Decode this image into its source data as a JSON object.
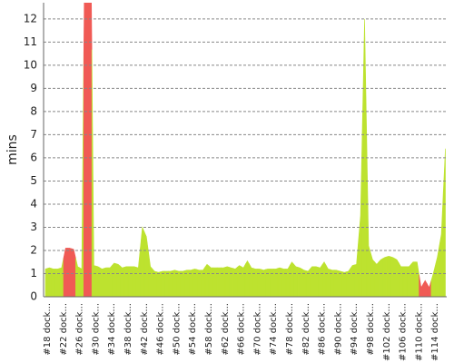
{
  "chart_data": {
    "type": "area",
    "y_label": "mins",
    "categories": [
      "#18 dock...",
      null,
      null,
      null,
      "#22 dock...",
      null,
      null,
      null,
      "#26 dock...",
      null,
      null,
      null,
      "#30 dock...",
      null,
      null,
      null,
      "#34 dock...",
      null,
      null,
      null,
      "#38 dock...",
      null,
      null,
      null,
      "#42 dock...",
      null,
      null,
      null,
      "#46 dock...",
      null,
      null,
      null,
      "#50 dock...",
      null,
      null,
      null,
      "#54 dock...",
      null,
      null,
      null,
      "#58 dock...",
      null,
      null,
      null,
      "#62 dock...",
      null,
      null,
      null,
      "#66 dock...",
      null,
      null,
      null,
      "#70 dock...",
      null,
      null,
      null,
      "#74 dock...",
      null,
      null,
      null,
      "#78 dock...",
      null,
      null,
      null,
      "#82 dock...",
      null,
      null,
      null,
      "#86 dock...",
      null,
      null,
      null,
      "#90 dock...",
      null,
      null,
      null,
      "#94 dock...",
      null,
      null,
      null,
      "#98 dock...",
      null,
      null,
      null,
      "#102 dock...",
      null,
      null,
      null,
      "#106 dock...",
      null,
      null,
      null,
      "#110 dock...",
      null,
      null,
      null,
      "#114 dock...",
      null,
      null,
      null
    ],
    "values": [
      1.2,
      1.25,
      1.2,
      1.2,
      1.25,
      2.1,
      2.1,
      2.05,
      1.3,
      1.2,
      20,
      20,
      1.35,
      1.3,
      1.2,
      1.25,
      1.25,
      1.45,
      1.4,
      1.25,
      1.3,
      1.3,
      1.3,
      1.25,
      3.0,
      2.6,
      1.3,
      1.1,
      1.05,
      1.1,
      1.1,
      1.1,
      1.15,
      1.1,
      1.1,
      1.15,
      1.15,
      1.2,
      1.15,
      1.15,
      1.4,
      1.25,
      1.25,
      1.25,
      1.25,
      1.3,
      1.25,
      1.2,
      1.35,
      1.25,
      1.55,
      1.25,
      1.2,
      1.2,
      1.15,
      1.2,
      1.2,
      1.2,
      1.25,
      1.2,
      1.2,
      1.5,
      1.3,
      1.25,
      1.15,
      1.1,
      1.3,
      1.3,
      1.25,
      1.5,
      1.2,
      1.15,
      1.15,
      1.1,
      1.05,
      1.1,
      1.35,
      1.4,
      3.5,
      12.0,
      2.2,
      1.6,
      1.4,
      1.6,
      1.7,
      1.75,
      1.7,
      1.6,
      1.3,
      1.3,
      1.3,
      1.5,
      1.5,
      0.4,
      0.7,
      0.4,
      1.0,
      1.7,
      2.7,
      6.4
    ],
    "point_colors": [
      "#bde22f",
      "#bde22f",
      "#bde22f",
      "#bde22f",
      "#bde22f",
      "#f05a55",
      "#f05a55",
      "#f05a55",
      "#bde22f",
      "#bde22f",
      "#f05a55",
      "#f05a55",
      "#bde22f",
      "#bde22f",
      "#bde22f",
      "#bde22f",
      "#bde22f",
      "#bde22f",
      "#bde22f",
      "#bde22f",
      "#bde22f",
      "#bde22f",
      "#bde22f",
      "#bde22f",
      "#bde22f",
      "#bde22f",
      "#bde22f",
      "#bde22f",
      "#bde22f",
      "#bde22f",
      "#bde22f",
      "#bde22f",
      "#bde22f",
      "#bde22f",
      "#bde22f",
      "#bde22f",
      "#bde22f",
      "#bde22f",
      "#bde22f",
      "#bde22f",
      "#bde22f",
      "#bde22f",
      "#bde22f",
      "#bde22f",
      "#bde22f",
      "#bde22f",
      "#bde22f",
      "#bde22f",
      "#bde22f",
      "#bde22f",
      "#bde22f",
      "#bde22f",
      "#bde22f",
      "#bde22f",
      "#bde22f",
      "#bde22f",
      "#bde22f",
      "#bde22f",
      "#bde22f",
      "#bde22f",
      "#bde22f",
      "#bde22f",
      "#bde22f",
      "#bde22f",
      "#bde22f",
      "#bde22f",
      "#bde22f",
      "#bde22f",
      "#bde22f",
      "#bde22f",
      "#bde22f",
      "#bde22f",
      "#bde22f",
      "#bde22f",
      "#bde22f",
      "#bde22f",
      "#bde22f",
      "#bde22f",
      "#bde22f",
      "#bde22f",
      "#bde22f",
      "#bde22f",
      "#bde22f",
      "#bde22f",
      "#bde22f",
      "#bde22f",
      "#bde22f",
      "#bde22f",
      "#bde22f",
      "#bde22f",
      "#bde22f",
      "#bde22f",
      "#bde22f",
      "#f05a55",
      "#f05a55",
      "#f05a55",
      "#bde22f",
      "#bde22f",
      "#bde22f",
      "#bde22f"
    ],
    "ylim": [
      0,
      12.7
    ],
    "yticks": [
      0,
      1,
      2,
      3,
      4,
      5,
      6,
      7,
      8,
      9,
      10,
      11,
      12
    ],
    "grid": true
  }
}
